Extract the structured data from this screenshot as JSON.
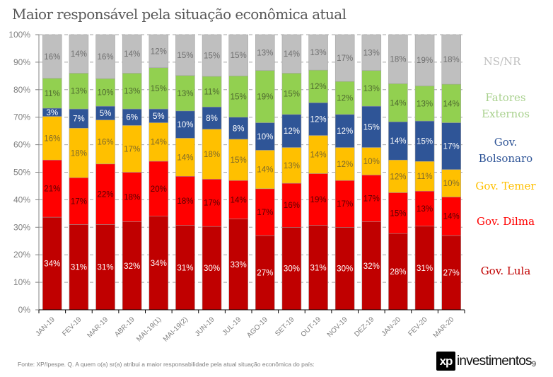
{
  "header": {
    "title": "Maior responsável pela situação econômica atual"
  },
  "chart_data": {
    "type": "bar",
    "stacked": true,
    "normalized": true,
    "title": "Maior responsável pela situação econômica atual",
    "xlabel": "",
    "ylabel": "",
    "ylim": [
      0,
      100
    ],
    "yticks": [
      "0%",
      "10%",
      "20%",
      "30%",
      "40%",
      "50%",
      "60%",
      "70%",
      "80%",
      "90%",
      "100%"
    ],
    "grid": true,
    "legend_placement": "right",
    "categories": [
      "JAN-19",
      "FEV-19",
      "MAR-19",
      "ABR-19",
      "MAI-19(1)",
      "MAI-19(2)",
      "JUN-19",
      "JUL-19",
      "AGO-19",
      "SET-19",
      "OUT-19",
      "NOV-19",
      "DEZ-19",
      "JAN-20",
      "FEV-20",
      "MAR-20"
    ],
    "series": [
      {
        "name": "Gov. Lula",
        "color": "#c00000",
        "label_color": "#ffffff",
        "values": [
          34,
          31,
          31,
          32,
          34,
          31,
          30,
          33,
          27,
          30,
          31,
          30,
          32,
          28,
          31,
          27
        ]
      },
      {
        "name": "Gov. Dilma",
        "color": "#ff0000",
        "label_color": "#5a0000",
        "values": [
          21,
          17,
          22,
          18,
          20,
          18,
          17,
          14,
          17,
          16,
          19,
          17,
          17,
          15,
          13,
          14
        ]
      },
      {
        "name": "Gov. Temer",
        "color": "#ffc000",
        "label_color": "#7f6a2a",
        "values": [
          16,
          18,
          16,
          17,
          14,
          14,
          18,
          15,
          14,
          13,
          14,
          12,
          10,
          12,
          11,
          10
        ]
      },
      {
        "name": "Gov. Bolsonaro",
        "color": "#2f5597",
        "label_color": "#ffffff",
        "values": [
          3,
          7,
          5,
          6,
          5,
          10,
          8,
          8,
          10,
          12,
          12,
          12,
          15,
          14,
          15,
          17
        ]
      },
      {
        "name": "Fatores Externos",
        "color": "#92d050",
        "label_color": "#4f6a2f",
        "values": [
          11,
          13,
          10,
          13,
          15,
          13,
          11,
          15,
          19,
          15,
          12,
          12,
          13,
          14,
          13,
          14
        ]
      },
      {
        "name": "NS/NR",
        "color": "#bfbfbf",
        "label_color": "#6f6f6f",
        "values": [
          16,
          14,
          16,
          14,
          12,
          15,
          15,
          15,
          13,
          14,
          13,
          17,
          13,
          18,
          19,
          18
        ]
      }
    ]
  },
  "legend": [
    {
      "key": "nsnr",
      "lines": [
        "NS/NR"
      ],
      "color": "#bfbfbf"
    },
    {
      "key": "externos",
      "lines": [
        "Fatores",
        "Externos"
      ],
      "color": "#a9d18e"
    },
    {
      "key": "bolsonaro",
      "lines": [
        "Gov.",
        "Bolsonaro"
      ],
      "color": "#2f5597"
    },
    {
      "key": "temer",
      "lines": [
        "Gov. Temer"
      ],
      "color": "#ffc000"
    },
    {
      "key": "dilma",
      "lines": [
        "Gov. Dilma"
      ],
      "color": "#ff0000"
    },
    {
      "key": "lula",
      "lines": [
        "Gov. Lula"
      ],
      "color": "#c00000"
    }
  ],
  "footer": {
    "source": "Fonte: XP/Ipespe. Q. A quem o(a) sr(a) atribui a maior responsabilidade pela atual situação econômica do país:",
    "logo_mark": "xp",
    "logo_text": "investimentos",
    "page_number": "9"
  }
}
